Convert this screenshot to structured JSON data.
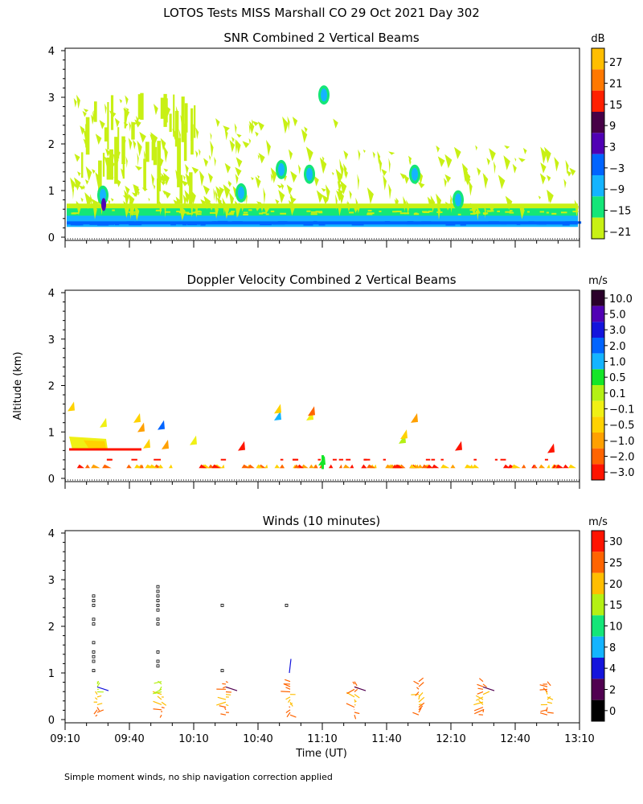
{
  "figure": {
    "title": "LOTOS Tests MISS Marshall CO  29 Oct 2021 Day 302",
    "ylabel": "Altitude (km)",
    "xlabel": "Time (UT)",
    "footnote": "Simple moment winds, no ship navigation correction applied",
    "x_ticks": [
      "09:10",
      "09:40",
      "10:10",
      "10:40",
      "11:10",
      "11:40",
      "12:10",
      "12:40",
      "13:10"
    ],
    "y_ticks": [
      "0",
      "1",
      "2",
      "3",
      "4"
    ]
  },
  "chart_data": [
    {
      "type": "heatmap",
      "title": "SNR Combined 2 Vertical Beams",
      "xlabel": "Time (UT)",
      "ylabel": "Altitude (km)",
      "xlim": [
        "09:10",
        "13:10"
      ],
      "ylim": [
        0,
        4
      ],
      "colorbar": {
        "unit": "dB",
        "ticks": [
          "27",
          "21",
          "15",
          "9",
          "3",
          "−3",
          "−9",
          "−15",
          "−21"
        ],
        "colors": [
          "#ffbe00",
          "#ff7800",
          "#ff2000",
          "#470047",
          "#5000b4",
          "#0064ff",
          "#14b4ff",
          "#14e678",
          "#c8f014"
        ]
      },
      "layers": [
        {
          "alt_km": [
            0.2,
            0.32
          ],
          "snr_db": -3
        },
        {
          "alt_km": [
            0.32,
            0.62
          ],
          "snr_db": -9
        },
        {
          "alt_km": [
            0.4,
            0.5
          ],
          "snr_db": -15
        },
        {
          "alt_km": [
            0.62,
            3.3
          ],
          "snr_db": -21
        }
      ]
    },
    {
      "type": "heatmap",
      "title": "Doppler Velocity Combined 2 Vertical Beams",
      "xlabel": "Time (UT)",
      "ylabel": "Altitude (km)",
      "xlim": [
        "09:10",
        "13:10"
      ],
      "ylim": [
        0,
        4
      ],
      "colorbar": {
        "unit": "m/s",
        "ticks": [
          "10.0",
          "5.0",
          "3.0",
          "2.0",
          "1.0",
          "0.5",
          "0.1",
          "−0.1",
          "−0.5",
          "−1.0",
          "−2.0",
          "−3.0"
        ],
        "colors": [
          "#2a002a",
          "#5000b4",
          "#1414dc",
          "#0064ff",
          "#14b4ff",
          "#14e628",
          "#b4f014",
          "#f0f014",
          "#ffd200",
          "#ffa000",
          "#ff6400",
          "#ff1400"
        ]
      }
    },
    {
      "type": "scatter",
      "title": "Winds (10 minutes)",
      "xlabel": "Time (UT)",
      "ylabel": "Altitude (km)",
      "xlim": [
        "09:10",
        "13:10"
      ],
      "ylim": [
        0,
        4
      ],
      "colorbar": {
        "unit": "m/s",
        "ticks": [
          "30",
          "25",
          "20",
          "15",
          "10",
          "8",
          "4",
          "2",
          "0"
        ],
        "colors": [
          "#ff1400",
          "#ff6400",
          "#ffbe00",
          "#b4f014",
          "#14e678",
          "#14b4ff",
          "#1414dc",
          "#500050",
          "#000000"
        ]
      },
      "wind_profiles_time": [
        "09:25",
        "09:55",
        "10:25",
        "10:55",
        "11:25",
        "11:55",
        "12:25",
        "12:55"
      ],
      "missing_points": [
        {
          "time": "09:25",
          "alt_km": [
            1.05,
            1.25,
            1.35,
            1.45,
            1.65,
            2.05,
            2.15,
            2.45,
            2.55,
            2.65
          ]
        },
        {
          "time": "09:55",
          "alt_km": [
            1.15,
            1.25,
            1.45,
            2.05,
            2.15,
            2.35,
            2.45,
            2.55,
            2.65,
            2.75,
            2.85
          ]
        },
        {
          "time": "10:25",
          "alt_km": [
            1.05,
            2.45
          ]
        },
        {
          "time": "10:55",
          "alt_km": [
            2.45
          ]
        }
      ]
    }
  ]
}
